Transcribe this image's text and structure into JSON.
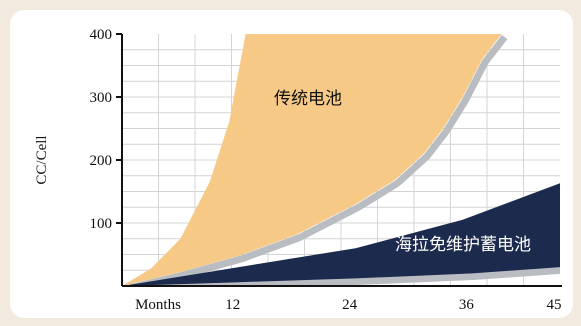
{
  "chart_data": {
    "type": "area",
    "ylabel": "CC/Cell",
    "ylim": [
      0,
      400
    ],
    "xlim": [
      0,
      45
    ],
    "y_ticks": [
      "100",
      "200",
      "300",
      "400"
    ],
    "y_tick_values": [
      100,
      200,
      300,
      400
    ],
    "x_ticks": [
      "Months",
      "12",
      "24",
      "36",
      "45"
    ],
    "x_tick_values": [
      null,
      12,
      24,
      36,
      45
    ],
    "grid": true,
    "colors": {
      "traditional_fill": "#f6c987",
      "maintenance_free_fill": "#1c2a4d",
      "shadow": "#b9bcc0",
      "grid": "#d4d4d4"
    },
    "series": [
      {
        "name": "传统电池",
        "label_color": "#111111",
        "upper": [
          [
            0,
            0
          ],
          [
            3,
            28
          ],
          [
            6,
            75
          ],
          [
            9,
            165
          ],
          [
            11,
            260
          ],
          [
            12.7,
            400
          ]
        ],
        "lower": [
          [
            0,
            0
          ],
          [
            6,
            22
          ],
          [
            12,
            48
          ],
          [
            18,
            82
          ],
          [
            24,
            130
          ],
          [
            28,
            168
          ],
          [
            31,
            210
          ],
          [
            33,
            250
          ],
          [
            35,
            300
          ],
          [
            37,
            360
          ],
          [
            39,
            400
          ]
        ]
      },
      {
        "name": "海拉免维护蓄电池",
        "label_color": "#ffffff",
        "upper": [
          [
            0,
            0
          ],
          [
            12,
            30
          ],
          [
            24,
            60
          ],
          [
            35,
            105
          ],
          [
            45,
            163
          ]
        ],
        "lower": [
          [
            0,
            0
          ],
          [
            12,
            6
          ],
          [
            24,
            12
          ],
          [
            36,
            20
          ],
          [
            45,
            30
          ]
        ]
      }
    ]
  }
}
